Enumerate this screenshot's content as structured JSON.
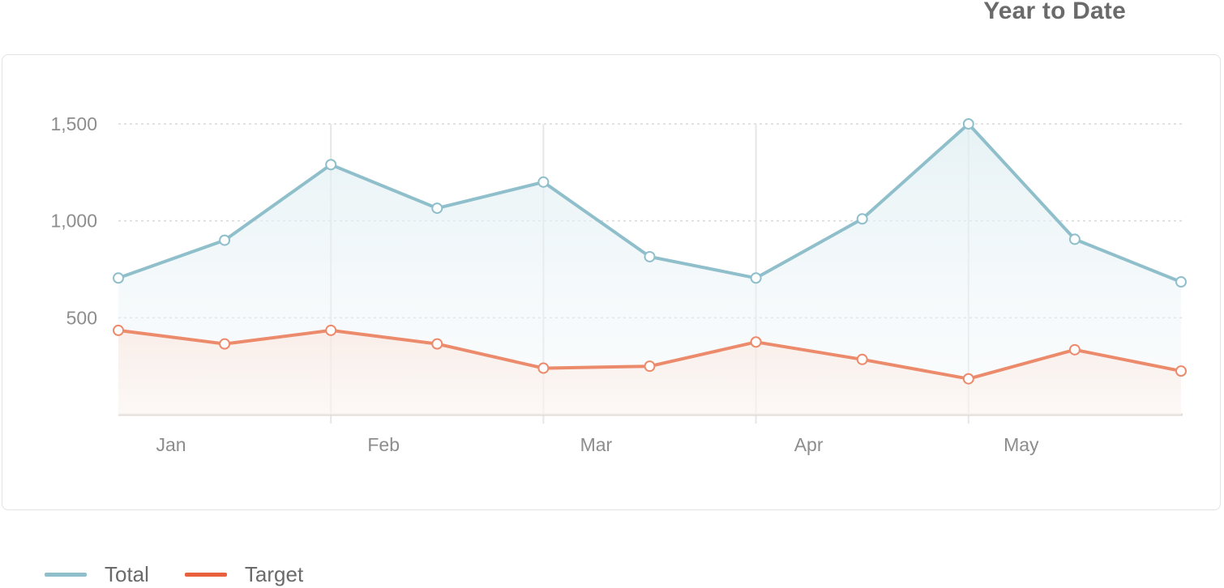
{
  "page": {
    "title": "Year to Date"
  },
  "colors": {
    "total": "#8fbfcb",
    "target": "#ec8a6c",
    "target_legend": "#e8603c",
    "grid": "#d9d9d9",
    "axis": "#e0dcd8",
    "tick_text": "#8d8d8d"
  },
  "legend": {
    "position": "bottom-left",
    "items": [
      {
        "label": "Total",
        "color": "#8fbfcb"
      },
      {
        "label": "Target",
        "color": "#e8603c"
      }
    ]
  },
  "chart_data": {
    "type": "area",
    "title": "Year to Date",
    "xlabel": "",
    "ylabel": "",
    "categories": [
      "Jan",
      "Feb",
      "Mar",
      "Apr",
      "May"
    ],
    "x": [
      1,
      2,
      3,
      4,
      5,
      6,
      7,
      8,
      9,
      10,
      11
    ],
    "ylim": [
      0,
      1500
    ],
    "yticks": [
      {
        "value": 1500,
        "label": "1,500"
      },
      {
        "value": 1000,
        "label": "1,000"
      },
      {
        "value": 500,
        "label": "500"
      }
    ],
    "grid": true,
    "series": [
      {
        "name": "Total",
        "values": [
          705,
          900,
          1290,
          1065,
          1200,
          815,
          705,
          1010,
          1500,
          905,
          685
        ]
      },
      {
        "name": "Target",
        "values": [
          435,
          365,
          435,
          365,
          240,
          250,
          375,
          285,
          185,
          335,
          225
        ]
      }
    ]
  }
}
